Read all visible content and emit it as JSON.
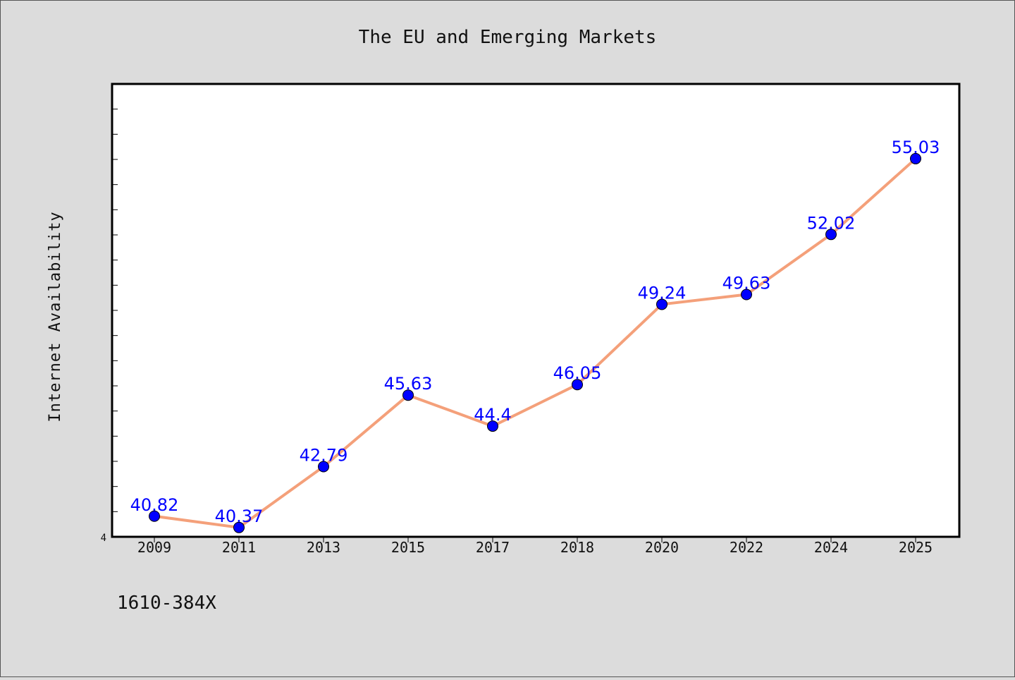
{
  "chart_data": {
    "type": "line",
    "title": "The EU and Emerging Markets",
    "ylabel": "Internet Availability",
    "xlabel": "",
    "categories": [
      "2009",
      "2011",
      "2013",
      "2015",
      "2017",
      "2018",
      "2020",
      "2022",
      "2024",
      "2025"
    ],
    "series": [
      {
        "values": [
          40.82,
          40.37,
          42.79,
          45.63,
          44.4,
          46.05,
          49.24,
          49.63,
          52.02,
          55.03
        ],
        "labels": [
          "40.82",
          "40.37",
          "42.79",
          "45.63",
          "44.4",
          "46.05",
          "49.24",
          "49.63",
          "52.02",
          "55.03"
        ],
        "line_color": "#f4a07a",
        "marker_color": "#0000ff"
      }
    ],
    "ylim": [
      40,
      58
    ],
    "y_tick_label": "4",
    "grid": false,
    "legend": "none"
  },
  "footer_text": "1610-384X",
  "colors": {
    "background": "#dcdcdc",
    "plot_bg": "#ffffff",
    "label_color": "#0000ff"
  }
}
